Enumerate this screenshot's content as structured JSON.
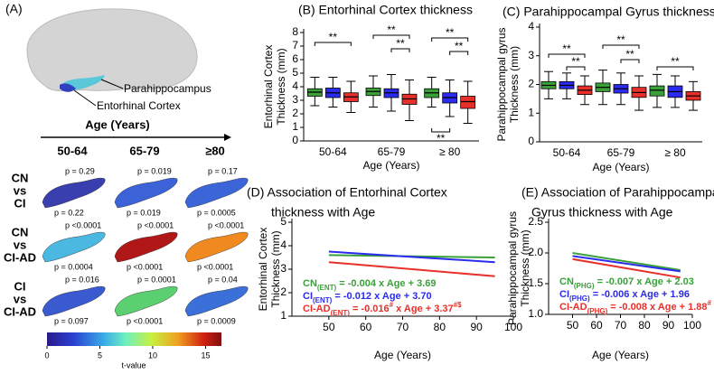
{
  "panel_a": {
    "label": "(A)",
    "regions": [
      "Parahippocampus",
      "Entorhinal Cortex"
    ],
    "axis_title": "Age (Years)",
    "columns": [
      "50-64",
      "65-79",
      "≥80"
    ],
    "rows": [
      [
        "CN",
        "vs",
        "CI"
      ],
      [
        "CN",
        "vs",
        "CI-AD"
      ],
      [
        "CI",
        "vs",
        "CI-AD"
      ]
    ],
    "p_values": [
      [
        [
          "p = 0.29",
          "p = 0.22"
        ],
        [
          "p = 0.019",
          "p = 0.019"
        ],
        [
          "p = 0.17",
          "p = 0.0005"
        ]
      ],
      [
        [
          "p <0.0001",
          "p = 0.0004"
        ],
        [
          "p <0.0001",
          "p <0.0001"
        ],
        [
          "p <0.0001",
          "p <0.0001"
        ]
      ],
      [
        [
          "p = 0.016",
          "p = 0.097"
        ],
        [
          "p = 0.0001",
          "p <0.0001"
        ],
        [
          "p = 0.04",
          "p = 0.0009"
        ]
      ]
    ],
    "colors": [
      [
        "#3a3fb0",
        "#3c62d8",
        "#3c66d8"
      ],
      [
        "#4ab8e0",
        "#b01818",
        "#f08a20"
      ],
      [
        "#3a5ad0",
        "#5ad070",
        "#3a70d8"
      ]
    ],
    "colorbar": {
      "range": [
        0,
        16.5
      ],
      "ticks": [
        0,
        5,
        10,
        15
      ],
      "label": "t-value"
    }
  },
  "chart_data": [
    {
      "type": "box",
      "title": "(B) Entorhinal Cortex thickness",
      "xlabel": "Age (Years)",
      "ylabel": [
        "Entorhinal Cortex",
        "Thickness (mm)"
      ],
      "categories": [
        "50-64",
        "65-79",
        "≥ 80"
      ],
      "ylim": [
        0,
        8
      ],
      "yticks": [
        0,
        1,
        2,
        3,
        4,
        5,
        6,
        7,
        8
      ],
      "series": [
        {
          "color": "#3aa03a",
          "values": [
            {
              "whislo": 2.6,
              "q1": 3.3,
              "med": 3.6,
              "q3": 3.85,
              "whishi": 4.7
            },
            {
              "whislo": 2.5,
              "q1": 3.35,
              "med": 3.65,
              "q3": 3.9,
              "whishi": 4.8
            },
            {
              "whislo": 2.5,
              "q1": 3.2,
              "med": 3.55,
              "q3": 3.85,
              "whishi": 4.7
            }
          ]
        },
        {
          "color": "#2b2bef",
          "values": [
            {
              "whislo": 2.5,
              "q1": 3.2,
              "med": 3.55,
              "q3": 3.9,
              "whishi": 4.7
            },
            {
              "whislo": 2.2,
              "q1": 3.2,
              "med": 3.55,
              "q3": 3.85,
              "whishi": 4.9
            },
            {
              "whislo": 1.8,
              "q1": 2.8,
              "med": 3.2,
              "q3": 3.55,
              "whishi": 4.5
            }
          ]
        },
        {
          "color": "#e8302a",
          "values": [
            {
              "whislo": 2.1,
              "q1": 2.9,
              "med": 3.25,
              "q3": 3.55,
              "whishi": 4.4
            },
            {
              "whislo": 1.5,
              "q1": 2.7,
              "med": 3.1,
              "q3": 3.45,
              "whishi": 4.5
            },
            {
              "whislo": 1.3,
              "q1": 2.4,
              "med": 2.9,
              "q3": 3.3,
              "whishi": 4.4
            }
          ]
        }
      ],
      "annotations": [
        "**",
        "**",
        "**",
        "**",
        "**",
        "**"
      ]
    },
    {
      "type": "box",
      "title": "(C) Parahippocampal Gyrus thickness",
      "xlabel": "Age (Years)",
      "ylabel": [
        "Parahippocampal gyrus",
        "Thickness (mm)"
      ],
      "categories": [
        "50-64",
        "65-79",
        "≥ 80"
      ],
      "ylim": [
        0,
        4
      ],
      "yticks": [
        0,
        1,
        2,
        3,
        4
      ],
      "series": [
        {
          "color": "#3aa03a",
          "values": [
            {
              "whislo": 1.5,
              "q1": 1.85,
              "med": 1.97,
              "q3": 2.1,
              "whishi": 2.45
            },
            {
              "whislo": 1.3,
              "q1": 1.75,
              "med": 1.9,
              "q3": 2.05,
              "whishi": 2.5
            },
            {
              "whislo": 1.2,
              "q1": 1.6,
              "med": 1.8,
              "q3": 1.95,
              "whishi": 2.35
            }
          ]
        },
        {
          "color": "#2b2bef",
          "values": [
            {
              "whislo": 1.5,
              "q1": 1.85,
              "med": 1.97,
              "q3": 2.1,
              "whishi": 2.4
            },
            {
              "whislo": 1.3,
              "q1": 1.7,
              "med": 1.85,
              "q3": 2.0,
              "whishi": 2.4
            },
            {
              "whislo": 1.2,
              "q1": 1.55,
              "med": 1.75,
              "q3": 1.95,
              "whishi": 2.3
            }
          ]
        },
        {
          "color": "#e8302a",
          "values": [
            {
              "whislo": 1.3,
              "q1": 1.65,
              "med": 1.8,
              "q3": 1.95,
              "whishi": 2.3
            },
            {
              "whislo": 1.1,
              "q1": 1.55,
              "med": 1.72,
              "q3": 1.9,
              "whishi": 2.3
            },
            {
              "whislo": 1.1,
              "q1": 1.45,
              "med": 1.6,
              "q3": 1.75,
              "whishi": 2.1
            }
          ]
        }
      ],
      "annotations": [
        "**",
        "**",
        "**",
        "**",
        "**"
      ]
    },
    {
      "type": "line",
      "title": [
        "(D) Association of Entorhinal Cortex",
        "thickness with Age"
      ],
      "xlabel": "Age (Years)",
      "ylabel": [
        "Entorhinal Cortex",
        "Thickness (mm)"
      ],
      "xlim": [
        40,
        100
      ],
      "xticks": [
        50,
        60,
        70,
        80,
        90,
        100
      ],
      "ylim": [
        1,
        5
      ],
      "yticks": [
        1,
        2,
        3,
        4,
        5
      ],
      "x": [
        50,
        95
      ],
      "series": [
        {
          "color": "#3aa03a",
          "values": [
            3.6,
            3.5
          ]
        },
        {
          "color": "#2b2bef",
          "values": [
            3.75,
            3.3
          ]
        },
        {
          "color": "#e8302a",
          "values": [
            3.3,
            2.7
          ]
        }
      ],
      "equations": [
        [
          {
            "t": "CN"
          },
          {
            "t": "(ENT)",
            "pos": "sub"
          },
          {
            "t": " = -0.004 x Age + 3.69"
          }
        ],
        [
          {
            "t": "CI"
          },
          {
            "t": "(ENT)",
            "pos": "sub"
          },
          {
            "t": " = -0.012 x Age + 3.70"
          }
        ],
        [
          {
            "t": "CI-AD"
          },
          {
            "t": "(ENT)",
            "pos": "sub"
          },
          {
            "t": " = -0.016"
          },
          {
            "t": "#",
            "pos": "sup"
          },
          {
            "t": " x Age + 3.37"
          },
          {
            "t": "#$",
            "pos": "sup"
          }
        ]
      ]
    },
    {
      "type": "line",
      "title": [
        "(E) Association of Parahippocampal",
        "Gyrus thickness with Age"
      ],
      "xlabel": "Age (Years)",
      "ylabel": [
        "Parahippocampal gyrus",
        "Thickness (mm)"
      ],
      "xlim": [
        40,
        100
      ],
      "xticks": [
        50,
        60,
        70,
        80,
        90,
        100
      ],
      "ylim": [
        1,
        2.5
      ],
      "yticks": [
        {
          "value": 1,
          "label": "1.0"
        },
        1.5,
        {
          "value": 2,
          "label": "2.0"
        },
        2.5
      ],
      "x": [
        50,
        95
      ],
      "series": [
        {
          "color": "#3aa03a",
          "values": [
            2.0,
            1.72
          ]
        },
        {
          "color": "#2b2bef",
          "values": [
            1.95,
            1.7
          ]
        },
        {
          "color": "#e8302a",
          "values": [
            1.9,
            1.6
          ]
        }
      ],
      "equations": [
        [
          {
            "t": "CN"
          },
          {
            "t": "(PHG)",
            "pos": "sub"
          },
          {
            "t": " = -0.007 x Age + 2.03"
          }
        ],
        [
          {
            "t": "CI"
          },
          {
            "t": "(PHG)",
            "pos": "sub"
          },
          {
            "t": " = -0.006 x Age + 1.96"
          }
        ],
        [
          {
            "t": "CI-AD"
          },
          {
            "t": "(PHG)",
            "pos": "sub"
          },
          {
            "t": " = -0.008 x Age + 1.88"
          },
          {
            "t": "#",
            "pos": "sup"
          }
        ]
      ]
    }
  ]
}
